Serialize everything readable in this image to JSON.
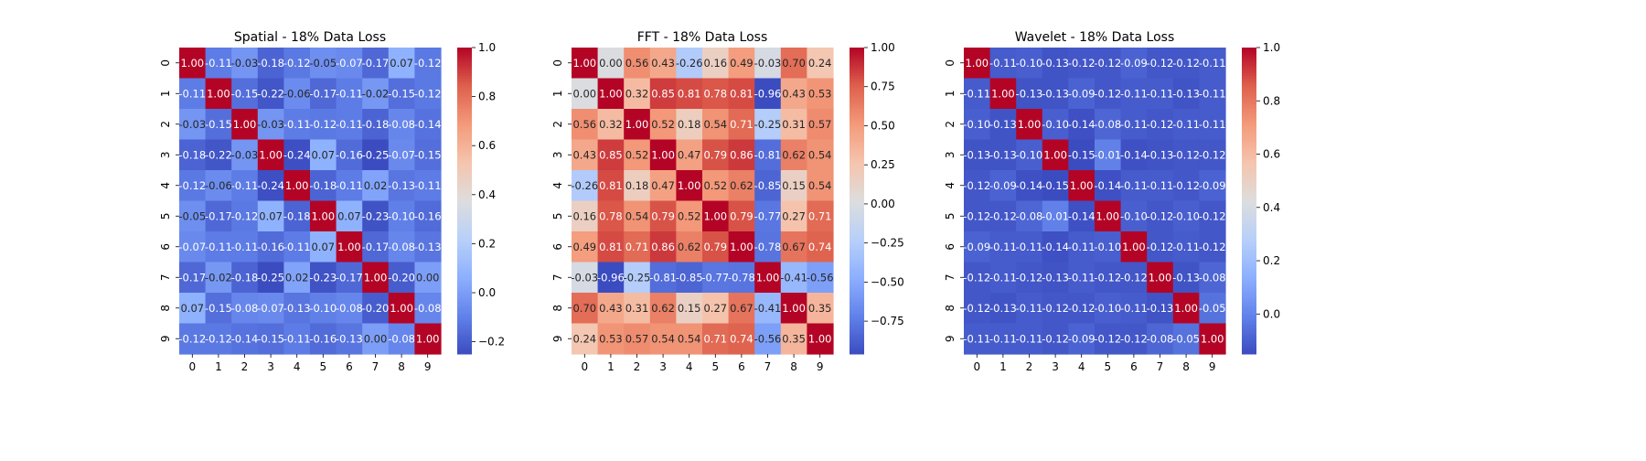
{
  "chart_data": [
    {
      "type": "heatmap",
      "title": "Spatial - 18% Data Loss",
      "x_categories": [
        "0",
        "1",
        "2",
        "3",
        "4",
        "5",
        "6",
        "7",
        "8",
        "9"
      ],
      "y_categories": [
        "0",
        "1",
        "2",
        "3",
        "4",
        "5",
        "6",
        "7",
        "8",
        "9"
      ],
      "values": [
        [
          1.0,
          -0.11,
          -0.03,
          -0.18,
          -0.12,
          -0.05,
          -0.07,
          -0.17,
          0.07,
          -0.12
        ],
        [
          -0.11,
          1.0,
          -0.15,
          -0.22,
          -0.06,
          -0.17,
          -0.11,
          -0.02,
          -0.15,
          -0.12
        ],
        [
          -0.03,
          -0.15,
          1.0,
          -0.03,
          -0.11,
          -0.12,
          -0.11,
          -0.18,
          -0.08,
          -0.14
        ],
        [
          -0.18,
          -0.22,
          -0.03,
          1.0,
          -0.24,
          0.07,
          -0.16,
          -0.25,
          -0.07,
          -0.15
        ],
        [
          -0.12,
          -0.06,
          -0.11,
          -0.24,
          1.0,
          -0.18,
          -0.11,
          0.02,
          -0.13,
          -0.11
        ],
        [
          -0.05,
          -0.17,
          -0.12,
          0.07,
          -0.18,
          1.0,
          0.07,
          -0.23,
          -0.1,
          -0.16
        ],
        [
          -0.07,
          -0.11,
          -0.11,
          -0.16,
          -0.11,
          0.07,
          1.0,
          -0.17,
          -0.08,
          -0.13
        ],
        [
          -0.17,
          -0.02,
          -0.18,
          -0.25,
          0.02,
          -0.23,
          -0.17,
          1.0,
          -0.2,
          -0.0
        ],
        [
          0.07,
          -0.15,
          -0.08,
          -0.07,
          -0.13,
          -0.1,
          -0.08,
          -0.2,
          1.0,
          -0.08
        ],
        [
          -0.12,
          -0.12,
          -0.14,
          -0.15,
          -0.11,
          -0.16,
          -0.13,
          -0.0,
          -0.08,
          1.0
        ]
      ],
      "value_format_decimals": 2,
      "colormap": "coolwarm",
      "color_range": [
        -0.25,
        1.0
      ],
      "colorbar_ticks": [
        -0.2,
        0.0,
        0.2,
        0.4,
        0.6,
        0.8,
        1.0
      ],
      "colorbar_tick_labels": [
        "−0.2",
        "0.0",
        "0.2",
        "0.4",
        "0.6",
        "0.8",
        "1.0"
      ]
    },
    {
      "type": "heatmap",
      "title": "FFT - 18% Data Loss",
      "x_categories": [
        "0",
        "1",
        "2",
        "3",
        "4",
        "5",
        "6",
        "7",
        "8",
        "9"
      ],
      "y_categories": [
        "0",
        "1",
        "2",
        "3",
        "4",
        "5",
        "6",
        "7",
        "8",
        "9"
      ],
      "values": [
        [
          1.0,
          -0.0,
          0.56,
          0.43,
          -0.26,
          0.16,
          0.49,
          -0.03,
          0.7,
          0.24
        ],
        [
          -0.0,
          1.0,
          0.32,
          0.85,
          0.81,
          0.78,
          0.81,
          -0.96,
          0.43,
          0.53
        ],
        [
          0.56,
          0.32,
          1.0,
          0.52,
          0.18,
          0.54,
          0.71,
          -0.25,
          0.31,
          0.57
        ],
        [
          0.43,
          0.85,
          0.52,
          1.0,
          0.47,
          0.79,
          0.86,
          -0.81,
          0.62,
          0.54
        ],
        [
          -0.26,
          0.81,
          0.18,
          0.47,
          1.0,
          0.52,
          0.62,
          -0.85,
          0.15,
          0.54
        ],
        [
          0.16,
          0.78,
          0.54,
          0.79,
          0.52,
          1.0,
          0.79,
          -0.77,
          0.27,
          0.71
        ],
        [
          0.49,
          0.81,
          0.71,
          0.86,
          0.62,
          0.79,
          1.0,
          -0.78,
          0.67,
          0.74
        ],
        [
          -0.03,
          -0.96,
          -0.25,
          -0.81,
          -0.85,
          -0.77,
          -0.78,
          1.0,
          -0.41,
          -0.56
        ],
        [
          0.7,
          0.43,
          0.31,
          0.62,
          0.15,
          0.27,
          0.67,
          -0.41,
          1.0,
          0.35
        ],
        [
          0.24,
          0.53,
          0.57,
          0.54,
          0.54,
          0.71,
          0.74,
          -0.56,
          0.35,
          1.0
        ]
      ],
      "value_format_decimals": 2,
      "colormap": "coolwarm",
      "color_range": [
        -0.96,
        1.0
      ],
      "colorbar_ticks": [
        -0.75,
        -0.5,
        -0.25,
        0.0,
        0.25,
        0.5,
        0.75,
        1.0
      ],
      "colorbar_tick_labels": [
        "−0.75",
        "−0.50",
        "−0.25",
        "0.00",
        "0.25",
        "0.50",
        "0.75",
        "1.00"
      ]
    },
    {
      "type": "heatmap",
      "title": "Wavelet - 18% Data Loss",
      "x_categories": [
        "0",
        "1",
        "2",
        "3",
        "4",
        "5",
        "6",
        "7",
        "8",
        "9"
      ],
      "y_categories": [
        "0",
        "1",
        "2",
        "3",
        "4",
        "5",
        "6",
        "7",
        "8",
        "9"
      ],
      "values": [
        [
          1.0,
          -0.11,
          -0.1,
          -0.13,
          -0.12,
          -0.12,
          -0.09,
          -0.12,
          -0.12,
          -0.11
        ],
        [
          -0.11,
          1.0,
          -0.13,
          -0.13,
          -0.09,
          -0.12,
          -0.11,
          -0.11,
          -0.13,
          -0.11
        ],
        [
          -0.1,
          -0.13,
          1.0,
          -0.1,
          -0.14,
          -0.08,
          -0.11,
          -0.12,
          -0.11,
          -0.11
        ],
        [
          -0.13,
          -0.13,
          -0.1,
          1.0,
          -0.15,
          -0.01,
          -0.14,
          -0.13,
          -0.12,
          -0.12
        ],
        [
          -0.12,
          -0.09,
          -0.14,
          -0.15,
          1.0,
          -0.14,
          -0.11,
          -0.11,
          -0.12,
          -0.09
        ],
        [
          -0.12,
          -0.12,
          -0.08,
          -0.01,
          -0.14,
          1.0,
          -0.1,
          -0.12,
          -0.1,
          -0.12
        ],
        [
          -0.09,
          -0.11,
          -0.11,
          -0.14,
          -0.11,
          -0.1,
          1.0,
          -0.12,
          -0.11,
          -0.12
        ],
        [
          -0.12,
          -0.11,
          -0.12,
          -0.13,
          -0.11,
          -0.12,
          -0.12,
          1.0,
          -0.13,
          -0.08
        ],
        [
          -0.12,
          -0.13,
          -0.11,
          -0.12,
          -0.12,
          -0.1,
          -0.11,
          -0.13,
          1.0,
          -0.05
        ],
        [
          -0.11,
          -0.11,
          -0.11,
          -0.12,
          -0.09,
          -0.12,
          -0.12,
          -0.08,
          -0.05,
          1.0
        ]
      ],
      "value_format_decimals": 2,
      "colormap": "coolwarm",
      "color_range": [
        -0.15,
        1.0
      ],
      "colorbar_ticks": [
        0.0,
        0.2,
        0.4,
        0.6,
        0.8,
        1.0
      ],
      "colorbar_tick_labels": [
        "0.0",
        "0.2",
        "0.4",
        "0.6",
        "0.8",
        "1.0"
      ]
    }
  ]
}
